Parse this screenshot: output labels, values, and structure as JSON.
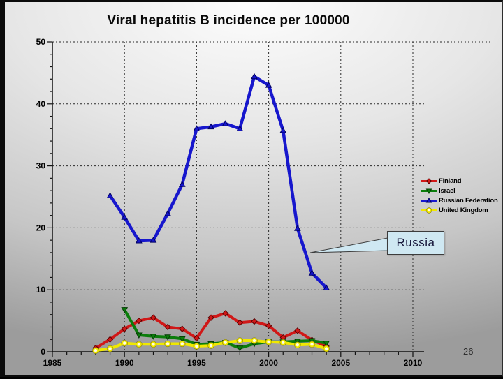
{
  "slide": {
    "title": "Viral hepatitis B incidence per 100000",
    "page_number": "26",
    "callout": {
      "text": "Russia"
    }
  },
  "colors": {
    "background_top": "#fdfdfd",
    "background_bottom": "#9c9c9c",
    "grid": "#2a2a2a",
    "axis": "#111111",
    "callout_fill": "#cfe8f2",
    "callout_border": "#3c3c3c"
  },
  "chart_data": {
    "type": "line",
    "title": "Viral hepatitis B incidence per 100000",
    "xlabel": "",
    "ylabel": "",
    "xlim": [
      1985,
      2010
    ],
    "ylim": [
      0,
      50
    ],
    "x_ticks": [
      1985,
      1990,
      1995,
      2000,
      2005,
      2010
    ],
    "y_ticks": [
      0,
      10,
      20,
      30,
      40,
      50
    ],
    "x_minor_step": 1,
    "y_minor_step": 2,
    "grid": "dashed-both",
    "legend_position": "right",
    "series": [
      {
        "name": "Finland",
        "color": "#d01818",
        "edge": "#5a0000",
        "marker": "diamond",
        "x": [
          1988,
          1989,
          1990,
          1991,
          1992,
          1993,
          1994,
          1995,
          1996,
          1997,
          1998,
          1999,
          2000,
          2001,
          2002,
          2003,
          2004
        ],
        "y": [
          0.6,
          2.0,
          3.7,
          5.0,
          5.5,
          4.0,
          3.7,
          2.2,
          5.5,
          6.2,
          4.7,
          4.9,
          4.2,
          2.3,
          3.4,
          1.9,
          0.9
        ]
      },
      {
        "name": "Israel",
        "color": "#0b7d0b",
        "edge": "#043d04",
        "marker": "triangle-down",
        "x": [
          1990,
          1991,
          1992,
          1993,
          1994,
          1995,
          1996,
          1997,
          1998,
          1999,
          2000,
          2001,
          2002,
          2003,
          2004
        ],
        "y": [
          6.8,
          2.7,
          2.5,
          2.4,
          2.1,
          1.2,
          1.3,
          1.5,
          0.6,
          1.3,
          1.6,
          1.6,
          1.7,
          1.8,
          1.4
        ]
      },
      {
        "name": "Russian Federation",
        "color": "#1717cd",
        "edge": "#000060",
        "marker": "triangle-up",
        "x": [
          1989,
          1990,
          1991,
          1992,
          1993,
          1994,
          1995,
          1996,
          1997,
          1998,
          1999,
          2000,
          2001,
          2002,
          2003,
          2004
        ],
        "y": [
          25.2,
          21.7,
          17.9,
          18.0,
          22.3,
          27.0,
          36.0,
          36.3,
          36.8,
          36.0,
          44.4,
          43.0,
          35.7,
          19.9,
          12.7,
          10.3
        ]
      },
      {
        "name": "United Kingdom",
        "color": "#f0e800",
        "edge": "#8a8000",
        "marker": "circle-open",
        "x": [
          1988,
          1989,
          1990,
          1991,
          1992,
          1993,
          1994,
          1995,
          1996,
          1997,
          1998,
          1999,
          2000,
          2001,
          2002,
          2003,
          2004
        ],
        "y": [
          0.2,
          0.5,
          1.4,
          1.2,
          1.2,
          1.3,
          1.3,
          0.9,
          1.0,
          1.5,
          1.8,
          1.8,
          1.6,
          1.5,
          1.1,
          1.2,
          0.5
        ]
      }
    ],
    "annotations": [
      {
        "text": "Russia",
        "target_series": "Russian Federation"
      }
    ]
  }
}
